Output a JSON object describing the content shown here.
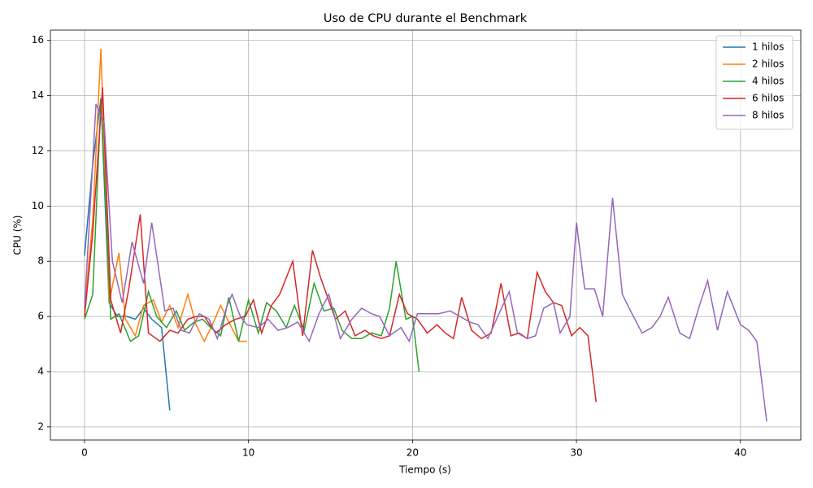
{
  "chart_data": {
    "type": "line",
    "title": "Uso de CPU durante el Benchmark",
    "x_label": "Tiempo (s)",
    "y_label": "CPU (%)",
    "xlim": [
      -2.08,
      43.68
    ],
    "ylim": [
      1.525,
      16.375
    ],
    "xticks": [
      0,
      10,
      20,
      30,
      40
    ],
    "yticks": [
      2,
      4,
      6,
      8,
      10,
      12,
      14,
      16
    ],
    "grid": true,
    "legend": "upper right",
    "series": [
      {
        "name": "1 hilos",
        "color": "#1f77b4",
        "x": [
          0,
          0.5,
          1.0,
          1.5,
          2.0,
          2.6,
          3.1,
          3.6,
          4.1,
          4.7,
          5.2
        ],
        "values": [
          8.2,
          11.5,
          13.9,
          6.5,
          6.0,
          6.0,
          5.9,
          6.3,
          5.9,
          5.6,
          2.6
        ]
      },
      {
        "name": "2 hilos",
        "color": "#ff7f0e",
        "x": [
          0,
          0.5,
          1.0,
          1.5,
          2.1,
          2.5,
          3.1,
          3.6,
          4.2,
          4.7,
          5.2,
          5.7,
          6.3,
          6.8,
          7.3,
          7.8,
          8.3,
          8.8,
          9.4,
          9.9
        ],
        "values": [
          6.2,
          9.5,
          15.7,
          6.5,
          8.3,
          5.9,
          5.3,
          6.4,
          6.6,
          5.8,
          6.4,
          5.6,
          6.8,
          5.7,
          5.1,
          5.7,
          6.4,
          5.8,
          5.1,
          5.1
        ]
      },
      {
        "name": "4 hilos",
        "color": "#2ca02c",
        "x": [
          0,
          0.5,
          1.0,
          1.6,
          2.1,
          2.8,
          3.3,
          3.9,
          4.4,
          5.0,
          5.6,
          6.1,
          6.7,
          7.2,
          7.7,
          8.3,
          8.8,
          9.4,
          10.0,
          10.6,
          11.1,
          11.7,
          12.3,
          12.8,
          13.4,
          14.0,
          14.6,
          15.2,
          15.7,
          16.3,
          16.9,
          17.5,
          18.1,
          18.6,
          19.0,
          19.6,
          20.0,
          20.4
        ],
        "values": [
          5.9,
          6.8,
          13.8,
          5.9,
          6.1,
          5.1,
          5.3,
          6.9,
          6.0,
          5.6,
          6.2,
          5.5,
          5.8,
          5.9,
          5.6,
          5.3,
          6.7,
          5.1,
          6.6,
          5.4,
          6.5,
          6.2,
          5.6,
          6.4,
          5.5,
          7.2,
          6.2,
          6.3,
          5.5,
          5.2,
          5.2,
          5.4,
          5.3,
          6.3,
          8.0,
          5.9,
          6.0,
          4.0
        ]
      },
      {
        "name": "6 hilos",
        "color": "#d62728",
        "x": [
          0,
          0.5,
          1.1,
          1.6,
          2.2,
          2.7,
          3.4,
          3.9,
          4.6,
          5.2,
          5.7,
          6.3,
          6.8,
          7.3,
          8.0,
          8.6,
          9.2,
          9.8,
          10.3,
          10.8,
          11.4,
          11.9,
          12.7,
          13.3,
          13.9,
          14.4,
          15.3,
          15.9,
          16.5,
          17.1,
          17.6,
          18.1,
          18.6,
          19.2,
          19.7,
          20.3,
          20.9,
          21.5,
          22.0,
          22.5,
          23.0,
          23.6,
          24.2,
          24.8,
          25.4,
          26.0,
          26.5,
          27.0,
          27.6,
          28.1,
          28.6,
          29.1,
          29.7,
          30.2,
          30.7,
          31.2
        ],
        "values": [
          6.0,
          9.0,
          14.3,
          6.6,
          5.4,
          7.0,
          9.7,
          5.4,
          5.1,
          5.5,
          5.4,
          5.9,
          6.0,
          6.0,
          5.4,
          5.7,
          5.9,
          6.0,
          6.6,
          5.4,
          6.4,
          6.8,
          8.0,
          5.3,
          8.4,
          7.4,
          5.9,
          6.2,
          5.3,
          5.5,
          5.3,
          5.2,
          5.3,
          6.8,
          6.1,
          5.9,
          5.4,
          5.7,
          5.4,
          5.2,
          6.7,
          5.5,
          5.2,
          5.4,
          7.2,
          5.3,
          5.4,
          5.2,
          7.6,
          6.9,
          6.5,
          6.4,
          5.3,
          5.6,
          5.3,
          2.9
        ]
      },
      {
        "name": "8 hilos",
        "color": "#9467bd",
        "x": [
          0,
          0.7,
          1.2,
          1.7,
          2.3,
          2.9,
          3.6,
          4.1,
          4.9,
          5.4,
          5.9,
          6.4,
          7.0,
          7.6,
          8.1,
          8.7,
          9.0,
          9.5,
          9.9,
          10.6,
          11.2,
          11.8,
          12.4,
          13.0,
          13.7,
          14.3,
          14.9,
          15.6,
          16.3,
          16.9,
          17.5,
          18.0,
          18.6,
          19.3,
          19.8,
          20.3,
          21.0,
          21.6,
          22.3,
          22.9,
          23.5,
          24.0,
          24.6,
          25.2,
          25.9,
          26.4,
          27.0,
          27.5,
          28.0,
          28.6,
          29.0,
          29.6,
          30.0,
          30.5,
          31.1,
          31.6,
          32.2,
          32.8,
          33.3,
          34.0,
          34.6,
          35.1,
          35.6,
          36.3,
          36.9,
          37.5,
          38.0,
          38.6,
          39.2,
          40.0,
          40.5,
          41.0,
          41.6
        ],
        "values": [
          6.3,
          13.7,
          13.0,
          8.0,
          6.5,
          8.7,
          7.2,
          9.4,
          6.2,
          6.3,
          5.5,
          5.4,
          6.1,
          5.9,
          5.2,
          6.4,
          6.8,
          6.0,
          5.7,
          5.6,
          5.9,
          5.5,
          5.6,
          5.8,
          5.1,
          6.1,
          6.8,
          5.2,
          5.9,
          6.3,
          6.1,
          6.0,
          5.3,
          5.6,
          5.1,
          6.1,
          6.1,
          6.1,
          6.2,
          6.0,
          5.8,
          5.7,
          5.2,
          6.0,
          6.9,
          5.4,
          5.2,
          5.3,
          6.3,
          6.5,
          5.4,
          6.0,
          9.4,
          7.0,
          7.0,
          6.0,
          10.3,
          6.8,
          6.2,
          5.4,
          5.6,
          6.0,
          6.7,
          5.4,
          5.2,
          6.4,
          7.3,
          5.5,
          6.9,
          5.7,
          5.5,
          5.1,
          2.2
        ]
      }
    ]
  }
}
